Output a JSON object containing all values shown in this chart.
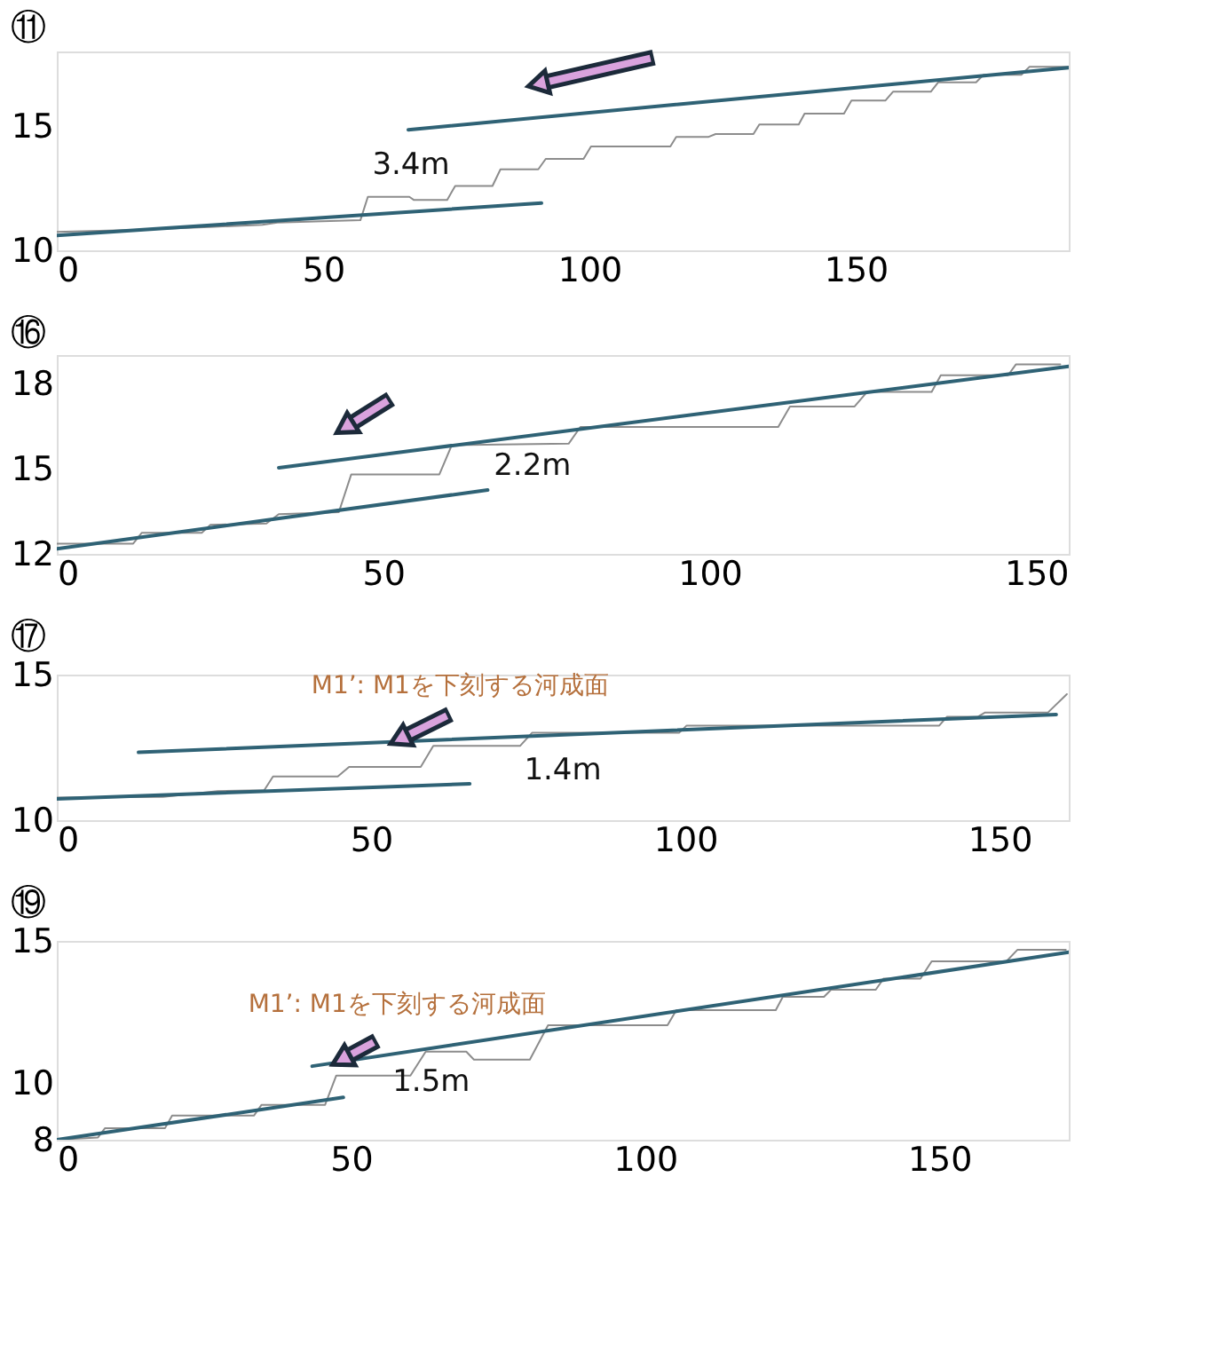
{
  "chart_data": [
    {
      "type": "line",
      "title": "⑪",
      "xlim": [
        0,
        190
      ],
      "ylim": [
        10,
        18
      ],
      "xticks": [
        0,
        50,
        100,
        150
      ],
      "yticks": [
        10,
        15
      ],
      "grid": false,
      "annotations": [
        "3.4m"
      ],
      "series": [
        {
          "color": "#8c8c8c",
          "x": [
            0,
            14.5,
            28.7,
            38.6,
            41.4,
            57.0,
            58.4,
            66.2,
            67.0,
            73.3,
            74.8,
            81.8,
            83.3,
            90.4,
            91.8,
            98.9,
            100.3,
            115.2,
            116.3,
            122.3,
            123.7,
            130.8,
            131.9,
            139.3,
            140.4,
            147.8,
            149.2,
            155.6,
            157.0,
            164.1,
            165.5,
            172.6,
            174.0,
            181.1,
            182.6,
            190
          ],
          "values": [
            10.74,
            10.82,
            10.94,
            11.03,
            11.12,
            11.21,
            12.15,
            12.15,
            12.03,
            12.03,
            12.59,
            12.59,
            13.26,
            13.26,
            13.68,
            13.68,
            14.18,
            14.18,
            14.56,
            14.56,
            14.68,
            14.68,
            15.06,
            15.06,
            15.5,
            15.5,
            16.03,
            16.03,
            16.38,
            16.38,
            16.76,
            16.76,
            17.06,
            17.06,
            17.38,
            17.38
          ]
        },
        {
          "color": "#2f6275",
          "x": [
            0,
            91
          ],
          "values": [
            10.6,
            11.9
          ]
        },
        {
          "color": "#2f6275",
          "x": [
            66,
            190
          ],
          "values": [
            14.85,
            17.35
          ]
        }
      ]
    },
    {
      "type": "line",
      "title": "⑯",
      "xlim": [
        0,
        155
      ],
      "ylim": [
        12,
        19
      ],
      "xticks": [
        0,
        50,
        100,
        150
      ],
      "yticks": [
        12,
        15,
        18
      ],
      "grid": false,
      "annotations": [
        "2.2m"
      ],
      "series": [
        {
          "color": "#8c8c8c",
          "x": [
            0,
            11.7,
            13.0,
            22.2,
            23.5,
            32.1,
            34.0,
            43.2,
            45.1,
            58.6,
            60.5,
            78.4,
            80.2,
            110.5,
            112.3,
            122.2,
            124.1,
            134.0,
            135.4,
            145.7,
            146.9,
            153.7
          ],
          "values": [
            12.36,
            12.36,
            12.74,
            12.74,
            13.02,
            13.07,
            13.4,
            13.47,
            14.8,
            14.8,
            15.83,
            15.88,
            16.47,
            16.47,
            17.19,
            17.19,
            17.7,
            17.7,
            18.29,
            18.29,
            18.67,
            18.67
          ]
        },
        {
          "color": "#2f6275",
          "x": [
            0,
            66
          ],
          "values": [
            12.18,
            14.25
          ]
        },
        {
          "color": "#2f6275",
          "x": [
            34,
            155
          ],
          "values": [
            15.03,
            18.6
          ]
        }
      ]
    },
    {
      "type": "line",
      "title": "⑰",
      "xlim": [
        0,
        161
      ],
      "ylim": [
        10,
        15
      ],
      "xticks": [
        0,
        50,
        100,
        150
      ],
      "yticks": [
        10,
        15
      ],
      "grid": false,
      "annotations": [
        {
          "text": "M1’: M1を下刻する河成面",
          "x": 53.7,
          "y": 12.69
        },
        "1.4m"
      ],
      "series": [
        {
          "color": "#8c8c8c",
          "x": [
            0,
            16.9,
            25.6,
            33.0,
            34.4,
            44.7,
            46.5,
            57.9,
            59.9,
            73.7,
            75.6,
            99.0,
            100.2,
            140.4,
            141.6,
            146.5,
            147.7,
            157.7,
            160.7
          ],
          "values": [
            10.78,
            10.8,
            11.0,
            11.03,
            11.5,
            11.5,
            11.83,
            11.83,
            12.55,
            12.55,
            13.0,
            13.0,
            13.25,
            13.25,
            13.55,
            13.55,
            13.7,
            13.7,
            14.33
          ]
        },
        {
          "color": "#2f6275",
          "x": [
            0,
            65.7
          ],
          "values": [
            10.73,
            11.25
          ]
        },
        {
          "color": "#2f6275",
          "x": [
            13,
            159
          ],
          "values": [
            12.33,
            13.63
          ]
        }
      ]
    },
    {
      "type": "line",
      "title": "⑲",
      "xlim": [
        0,
        172
      ],
      "ylim": [
        8,
        15
      ],
      "xticks": [
        0,
        50,
        100,
        150
      ],
      "yticks": [
        8,
        10,
        15
      ],
      "grid": false,
      "annotations": [
        {
          "text": "M1’: M1を下刻する河成面",
          "x": 47.5,
          "y": 10.72
        },
        "1.5m"
      ],
      "series": [
        {
          "color": "#8c8c8c",
          "x": [
            0,
            7.0,
            8.2,
            18.4,
            19.6,
            33.5,
            34.8,
            45.6,
            47.5,
            60.1,
            62.7,
            69.6,
            70.9,
            80.4,
            83.5,
            103.8,
            105.3,
            122.2,
            123.4,
            130.4,
            131.6,
            139.2,
            140.5,
            146.8,
            148.7,
            161.4,
            163.3,
            171.5
          ],
          "values": [
            8.0,
            8.08,
            8.41,
            8.41,
            8.85,
            8.85,
            9.23,
            9.23,
            10.26,
            10.26,
            11.1,
            11.1,
            10.82,
            10.82,
            12.03,
            12.03,
            12.56,
            12.56,
            13.03,
            13.03,
            13.28,
            13.28,
            13.67,
            13.67,
            14.28,
            14.28,
            14.69,
            14.69
          ]
        },
        {
          "color": "#2f6275",
          "x": [
            0,
            48.7
          ],
          "values": [
            8.0,
            9.49
          ]
        },
        {
          "color": "#2f6275",
          "x": [
            43.4,
            172
          ],
          "values": [
            10.59,
            14.6
          ]
        }
      ]
    }
  ]
}
